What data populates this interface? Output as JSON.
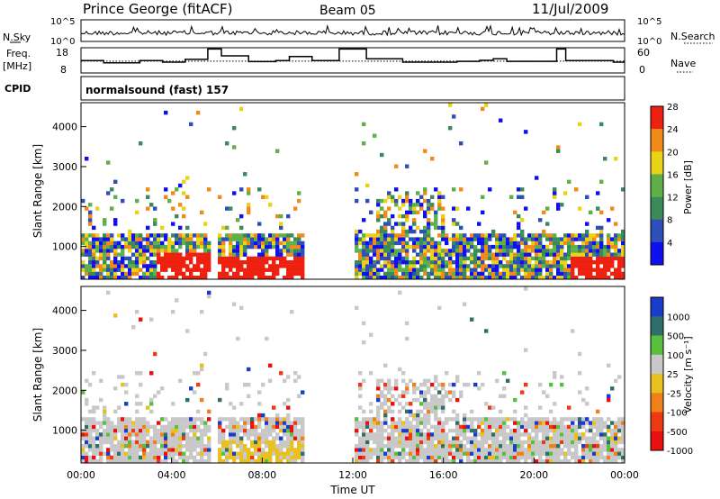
{
  "header": {
    "station": "Prince George (fitACF)",
    "beam": "Beam 05",
    "date": "11/Jul/2009"
  },
  "left_labels": {
    "nsky": "N.Sky",
    "freq_line1": "Freq.",
    "freq_line2": "[MHz]",
    "cpid": "CPID"
  },
  "right_labels": {
    "nsearch": "N.Search",
    "nave": "Nave"
  },
  "cpid_text": "normalsound (fast) 157",
  "chart_data": [
    {
      "type": "line",
      "title": "N.Sky / N.Search",
      "ylabel_left": "N.Sky",
      "ylabel_right": "N.Search",
      "left_ticks": [
        "10^5",
        "10^0"
      ],
      "right_ticks": [
        "10^5",
        "10^0"
      ]
    },
    {
      "type": "line",
      "title": "Freq / Nave",
      "ylabel_left": "Freq. [MHz]",
      "ylabel_right": "Nave",
      "left_ticks": [
        "18",
        "8"
      ],
      "right_ticks": [
        "60",
        "0"
      ],
      "freq_steps": [
        {
          "t": 0.0,
          "f": 12.9
        },
        {
          "t": 1.0,
          "f": 12.0
        },
        {
          "t": 2.6,
          "f": 12.9
        },
        {
          "t": 3.6,
          "f": 12.3
        },
        {
          "t": 4.6,
          "f": 13.4
        },
        {
          "t": 5.6,
          "f": 17.5
        },
        {
          "t": 6.2,
          "f": 14.8
        },
        {
          "t": 7.4,
          "f": 12.5
        },
        {
          "t": 8.6,
          "f": 12.9
        },
        {
          "t": 9.2,
          "f": 14.5
        },
        {
          "t": 10.2,
          "f": 12.9
        },
        {
          "t": 11.4,
          "f": 17.5
        },
        {
          "t": 12.6,
          "f": 13.6
        },
        {
          "t": 14.2,
          "f": 12.3
        },
        {
          "t": 16.6,
          "f": 12.6
        },
        {
          "t": 17.6,
          "f": 13.0
        },
        {
          "t": 18.2,
          "f": 13.6
        },
        {
          "t": 18.8,
          "f": 12.6
        },
        {
          "t": 21.0,
          "f": 17.5
        },
        {
          "t": 21.4,
          "f": 12.9
        },
        {
          "t": 22.6,
          "f": 12.9
        },
        {
          "t": 23.5,
          "f": 12.3
        }
      ],
      "nave_level": 28
    },
    {
      "type": "heatmap",
      "quantity": "power",
      "ylabel": "Slant Range [km]",
      "yticks": [
        1000,
        2000,
        3000,
        4000
      ],
      "ylim": [
        180,
        4600
      ],
      "xlim": [
        0,
        24
      ],
      "colorbar_label": "Power [dB]",
      "colorbar_ticks": [
        "4",
        "8",
        "12",
        "16",
        "20",
        "24",
        "28"
      ],
      "colors": [
        "#1010ee",
        "#2f4fb8",
        "#3a8a5a",
        "#5fb04a",
        "#e8d21a",
        "#f08a1a",
        "#ee2010"
      ],
      "gap_hours": [
        [
          5.6,
          6.0
        ],
        [
          9.8,
          12.0
        ]
      ]
    },
    {
      "type": "heatmap",
      "quantity": "velocity",
      "ylabel": "Slant Range [km]",
      "yticks": [
        1000,
        2000,
        3000,
        4000
      ],
      "ylim": [
        180,
        4600
      ],
      "xlim": [
        0,
        24
      ],
      "colorbar_label": "Velocity [m s⁻¹]",
      "colorbar_ticks": [
        "1000",
        "500",
        "100",
        "25",
        "-25",
        "-100",
        "-500",
        "-1000"
      ],
      "colors": [
        "#1a3cc8",
        "#2f6f6a",
        "#58c040",
        "#c8c8c8",
        "#e8c020",
        "#f0801a",
        "#ee3a12",
        "#e81010"
      ],
      "gap_hours": [
        [
          5.6,
          6.0
        ],
        [
          9.8,
          12.0
        ]
      ]
    }
  ],
  "x_axis": {
    "ticks": [
      "00:00",
      "04:00",
      "08:00",
      "12:00",
      "16:00",
      "20:00",
      "00:00"
    ],
    "label": "Time UT"
  }
}
